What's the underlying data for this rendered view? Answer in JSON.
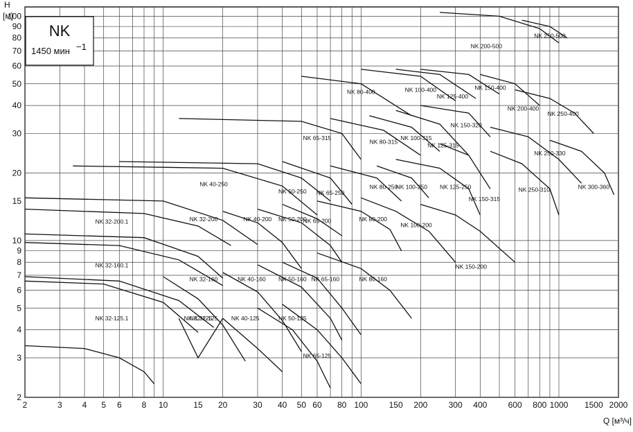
{
  "chart_data": {
    "type": "line",
    "title": "NK",
    "subtitle": "1450 мин",
    "subtitle_sup": "−1",
    "ylabel": "H",
    "ylabel_unit": "[м]",
    "xlabel": "Q [м³/ч]",
    "x_scale": "log",
    "y_scale": "log",
    "xlim": [
      2,
      2000
    ],
    "ylim": [
      2,
      110
    ],
    "grid": true,
    "x_ticks": [
      2,
      3,
      4,
      5,
      6,
      8,
      10,
      15,
      20,
      30,
      40,
      50,
      60,
      80,
      100,
      150,
      200,
      300,
      400,
      600,
      800,
      1000,
      1500,
      2000
    ],
    "y_ticks": [
      2,
      3,
      4,
      5,
      6,
      7,
      8,
      9,
      10,
      15,
      20,
      30,
      40,
      50,
      60,
      70,
      80,
      90,
      100
    ],
    "x_tick_labels": [
      "2",
      "3",
      "4",
      "5",
      "6",
      "8",
      "10",
      "15",
      "20",
      "30",
      "40",
      "50",
      "60",
      "80",
      "100",
      "150",
      "200",
      "300",
      "400",
      "600",
      "800",
      "1000",
      "1500",
      "2000"
    ],
    "y_tick_labels": [
      "2",
      "3",
      "4",
      "5",
      "6",
      "7",
      "8",
      "9",
      "10",
      "15",
      "20",
      "30",
      "40",
      "50",
      "60",
      "70",
      "80",
      "90",
      "100"
    ],
    "series": [
      {
        "name": "NK 32-125.1",
        "label": {
          "q": 5.5,
          "h": 4.4
        },
        "curves": [
          {
            "q": [
              2,
              4,
              6,
              8,
              9
            ],
            "h": [
              3.4,
              3.3,
              3.0,
              2.6,
              2.3
            ]
          },
          {
            "q": [
              2,
              5,
              10,
              15
            ],
            "h": [
              6.6,
              6.4,
              5.3,
              3.9
            ]
          }
        ]
      },
      {
        "name": "NK 32-125",
        "label": {
          "q": 15,
          "h": 4.4
        },
        "curves": [
          {
            "q": [
              12,
              15,
              20
            ],
            "h": [
              4.5,
              3.0,
              4.5
            ]
          }
        ]
      },
      {
        "name": "NK 32-160.1",
        "label": {
          "q": 5.5,
          "h": 7.6
        },
        "curves": [
          {
            "q": [
              2,
              6,
              12,
              18
            ],
            "h": [
              6.9,
              6.6,
              5.4,
              4.1
            ]
          },
          {
            "q": [
              2,
              6,
              12,
              20
            ],
            "h": [
              9.8,
              9.5,
              8.2,
              6.3
            ]
          }
        ]
      },
      {
        "name": "NK 32-160",
        "label": {
          "q": 16,
          "h": 6.6
        },
        "curves": [
          {
            "q": [
              10,
              15,
              20,
              26
            ],
            "h": [
              6.9,
              5.5,
              4.2,
              2.9
            ]
          }
        ]
      },
      {
        "name": "NK 32-200.1",
        "label": {
          "q": 5.5,
          "h": 11.9
        },
        "curves": [
          {
            "q": [
              2,
              8,
              15,
              20
            ],
            "h": [
              10.7,
              10.3,
              8.5,
              6.8
            ]
          },
          {
            "q": [
              2,
              8,
              15,
              22
            ],
            "h": [
              13.8,
              13.2,
              11.6,
              9.5
            ]
          }
        ]
      },
      {
        "name": "NK 32-200",
        "label": {
          "q": 16,
          "h": 12.2
        },
        "curves": [
          {
            "q": [
              2,
              10,
              20,
              30
            ],
            "h": [
              15.5,
              15.0,
              12.3,
              9.6
            ]
          }
        ]
      },
      {
        "name": "NK 32-125",
        "label": {
          "q": 16,
          "h": 4.4
        },
        "curves": []
      },
      {
        "name": "NK 40-125",
        "label": {
          "q": 26,
          "h": 4.4
        },
        "curves": [
          {
            "q": [
              20,
              30,
              40
            ],
            "h": [
              4.5,
              3.3,
              2.6
            ]
          }
        ]
      },
      {
        "name": "NK 40-160",
        "label": {
          "q": 28,
          "h": 6.6
        },
        "curves": [
          {
            "q": [
              20,
              30,
              40,
              50
            ],
            "h": [
              7.2,
              5.9,
              4.4,
              3.2
            ]
          }
        ]
      },
      {
        "name": "NK 40-200",
        "label": {
          "q": 30,
          "h": 12.2
        },
        "curves": [
          {
            "q": [
              20,
              30,
              40,
              50
            ],
            "h": [
              13.5,
              12.0,
              9.8,
              7.5
            ]
          }
        ]
      },
      {
        "name": "NK 40-250",
        "label": {
          "q": 18,
          "h": 17.5
        },
        "curves": [
          {
            "q": [
              3.5,
              20,
              40,
              60
            ],
            "h": [
              21.5,
              21.0,
              17.5,
              13.0
            ]
          }
        ]
      },
      {
        "name": "NK 50-125",
        "label": {
          "q": 45,
          "h": 4.4
        },
        "curves": [
          {
            "q": [
              30,
              45,
              60,
              70
            ],
            "h": [
              5.0,
              4.0,
              2.9,
              2.2
            ]
          }
        ]
      },
      {
        "name": "NK 50-160",
        "label": {
          "q": 45,
          "h": 6.6
        },
        "curves": [
          {
            "q": [
              30,
              50,
              70,
              80
            ],
            "h": [
              7.8,
              6.2,
              4.5,
              3.6
            ]
          }
        ]
      },
      {
        "name": "NK 50-200",
        "label": {
          "q": 45,
          "h": 12.2
        },
        "curves": [
          {
            "q": [
              30,
              50,
              70,
              80
            ],
            "h": [
              13.8,
              12.0,
              9.5,
              8.0
            ]
          }
        ]
      },
      {
        "name": "NK 50-250",
        "label": {
          "q": 45,
          "h": 16.2
        },
        "curves": [
          {
            "q": [
              6,
              30,
              50,
              70
            ],
            "h": [
              22.5,
              22.0,
              19.0,
              15.0
            ]
          }
        ]
      },
      {
        "name": "NK 65-125",
        "label": {
          "q": 60,
          "h": 3.0
        },
        "curves": [
          {
            "q": [
              40,
              60,
              80,
              100
            ],
            "h": [
              5.2,
              4.0,
              3.0,
              2.3
            ]
          }
        ]
      },
      {
        "name": "NK 65-160",
        "label": {
          "q": 66,
          "h": 6.6
        },
        "curves": [
          {
            "q": [
              40,
              60,
              80,
              100
            ],
            "h": [
              8.0,
              6.8,
              5.0,
              3.8
            ]
          }
        ]
      },
      {
        "name": "NK 65-200",
        "label": {
          "q": 60,
          "h": 12.0
        },
        "curves": [
          {
            "q": [
              40,
              60,
              80
            ],
            "h": [
              14.5,
              12.5,
              10.5
            ]
          }
        ]
      },
      {
        "name": "NK 65-250",
        "label": {
          "q": 70,
          "h": 16.0
        },
        "curves": [
          {
            "q": [
              40,
              70,
              90
            ],
            "h": [
              22.5,
              19.0,
              14.5
            ]
          }
        ]
      },
      {
        "name": "NK 65-315",
        "label": {
          "q": 60,
          "h": 28.0
        },
        "curves": [
          {
            "q": [
              12,
              50,
              80,
              100
            ],
            "h": [
              35.0,
              34.0,
              30.0,
              23.0
            ]
          }
        ]
      },
      {
        "name": "NK 80-160",
        "label": {
          "q": 115,
          "h": 6.6
        },
        "curves": [
          {
            "q": [
              60,
              100,
              140,
              180
            ],
            "h": [
              8.8,
              7.5,
              6.0,
              4.5
            ]
          }
        ]
      },
      {
        "name": "NK 80-200",
        "label": {
          "q": 115,
          "h": 12.2
        },
        "curves": [
          {
            "q": [
              60,
              100,
              140,
              160
            ],
            "h": [
              15.0,
              13.5,
              11.2,
              9.0
            ]
          }
        ]
      },
      {
        "name": "NK 80-250",
        "label": {
          "q": 130,
          "h": 17.0
        },
        "curves": [
          {
            "q": [
              70,
              120,
              160
            ],
            "h": [
              21.5,
              19.0,
              15.0
            ]
          }
        ]
      },
      {
        "name": "NK 80-315",
        "label": {
          "q": 130,
          "h": 27.0
        },
        "curves": [
          {
            "q": [
              70,
              130,
              200
            ],
            "h": [
              35.0,
              31.0,
              24.0
            ]
          }
        ]
      },
      {
        "name": "NK 80-400",
        "label": {
          "q": 100,
          "h": 45.0
        },
        "curves": [
          {
            "q": [
              50,
              100,
              180
            ],
            "h": [
              54.0,
              50.0,
              36.0
            ]
          }
        ]
      },
      {
        "name": "NK 100-200",
        "label": {
          "q": 190,
          "h": 11.5
        },
        "curves": [
          {
            "q": [
              100,
              150,
              220,
              300
            ],
            "h": [
              15.5,
              13.5,
              11.0,
              8.0
            ]
          }
        ]
      },
      {
        "name": "NK 100-250",
        "label": {
          "q": 180,
          "h": 17.0
        },
        "curves": [
          {
            "q": [
              120,
              180,
              220
            ],
            "h": [
              21.5,
              19.0,
              15.5
            ]
          }
        ]
      },
      {
        "name": "NK 100-315",
        "label": {
          "q": 190,
          "h": 28.0
        },
        "curves": [
          {
            "q": [
              110,
              180,
              250
            ],
            "h": [
              36.0,
              32.0,
              25.0
            ]
          }
        ]
      },
      {
        "name": "NK 100-400",
        "label": {
          "q": 200,
          "h": 46.0
        },
        "curves": [
          {
            "q": [
              100,
              200,
              300
            ],
            "h": [
              58.0,
              54.0,
              42.0
            ]
          }
        ]
      },
      {
        "name": "NK 125-250",
        "label": {
          "q": 300,
          "h": 17.0
        },
        "curves": [
          {
            "q": [
              150,
              250,
              350,
              400
            ],
            "h": [
              23.0,
              21.0,
              17.0,
              13.0
            ]
          }
        ]
      },
      {
        "name": "NK 125-315",
        "label": {
          "q": 260,
          "h": 26.0
        },
        "curves": [
          {
            "q": [
              150,
              250,
              350
            ],
            "h": [
              38.0,
              33.0,
              24.0
            ]
          }
        ]
      },
      {
        "name": "NK 125-400",
        "label": {
          "q": 290,
          "h": 43.0
        },
        "curves": [
          {
            "q": [
              150,
              250,
              380
            ],
            "h": [
              58.0,
              55.0,
              43.0
            ]
          }
        ]
      },
      {
        "name": "NK 150-200",
        "label": {
          "q": 360,
          "h": 7.5
        },
        "curves": [
          {
            "q": [
              200,
              300,
              400,
              600
            ],
            "h": [
              14.5,
              13.0,
              11.0,
              8.0
            ]
          }
        ]
      },
      {
        "name": "NK 150-315",
        "label": {
          "q": 420,
          "h": 15.0
        },
        "curves": [
          {
            "q": [
              250,
              350,
              450
            ],
            "h": [
              27.0,
              24.0,
              17.0
            ]
          }
        ]
      },
      {
        "name": "NK 150-320",
        "label": {
          "q": 340,
          "h": 32.0
        },
        "curves": [
          {
            "q": [
              200,
              350,
              450
            ],
            "h": [
              40.0,
              37.0,
              29.0
            ]
          }
        ]
      },
      {
        "name": "NK 150-400",
        "label": {
          "q": 450,
          "h": 47.0
        },
        "curves": [
          {
            "q": [
              200,
              350,
              500
            ],
            "h": [
              58.0,
              55.0,
              45.0
            ]
          }
        ]
      },
      {
        "name": "NK 200-400",
        "label": {
          "q": 660,
          "h": 38.0
        },
        "curves": [
          {
            "q": [
              400,
              600,
              800
            ],
            "h": [
              55.0,
              50.0,
              40.0
            ]
          }
        ]
      },
      {
        "name": "NK 200-500",
        "label": {
          "q": 430,
          "h": 72.0
        },
        "curves": [
          {
            "q": [
              250,
              500,
              800,
              1000
            ],
            "h": [
              104.0,
              100.0,
              88.0,
              76.0
            ]
          }
        ]
      },
      {
        "name": "NK 250-310",
        "label": {
          "q": 750,
          "h": 16.5
        },
        "curves": [
          {
            "q": [
              450,
              650,
              900,
              1000
            ],
            "h": [
              25.0,
              22.0,
              17.0,
              13.0
            ]
          }
        ]
      },
      {
        "name": "NK 250-330",
        "label": {
          "q": 900,
          "h": 24.0
        },
        "curves": [
          {
            "q": [
              450,
              700,
              1000,
              1300
            ],
            "h": [
              32.0,
              29.0,
              23.0,
              18.0
            ]
          }
        ]
      },
      {
        "name": "NK 250-400",
        "label": {
          "q": 1050,
          "h": 36.0
        },
        "curves": [
          {
            "q": [
              600,
              900,
              1200,
              1500
            ],
            "h": [
              47.0,
              43.0,
              37.0,
              30.0
            ]
          }
        ]
      },
      {
        "name": "NK 250-500",
        "label": {
          "q": 900,
          "h": 80.0
        },
        "curves": [
          {
            "q": [
              650,
              900,
              1100
            ],
            "h": [
              96.0,
              90.0,
              80.0
            ]
          }
        ]
      },
      {
        "name": "NK 300-360",
        "label": {
          "q": 1500,
          "h": 17.0
        },
        "curves": [
          {
            "q": [
              900,
              1300,
              1700,
              1900
            ],
            "h": [
              28.0,
              25.0,
              20.0,
              16.0
            ]
          }
        ]
      }
    ]
  }
}
